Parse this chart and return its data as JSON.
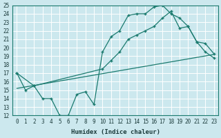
{
  "xlabel": "Humidex (Indice chaleur)",
  "bg_color": "#cce8ee",
  "grid_color": "#ffffff",
  "line_color": "#1a7a6e",
  "xlim_min": -0.5,
  "xlim_max": 23.5,
  "ylim_min": 12,
  "ylim_max": 25,
  "xticks": [
    0,
    1,
    2,
    3,
    4,
    5,
    6,
    7,
    8,
    9,
    10,
    11,
    12,
    13,
    14,
    15,
    16,
    17,
    18,
    19,
    20,
    21,
    22,
    23
  ],
  "yticks": [
    12,
    13,
    14,
    15,
    16,
    17,
    18,
    19,
    20,
    21,
    22,
    23,
    24,
    25
  ],
  "line1_x": [
    0,
    1,
    2,
    3,
    4,
    5,
    6,
    7,
    8,
    9,
    10,
    11,
    12,
    13,
    14,
    15,
    16,
    17,
    18,
    19,
    20,
    21,
    22,
    23
  ],
  "line1_y": [
    17,
    15,
    15.5,
    14,
    14,
    12,
    12,
    14.5,
    14.8,
    13.3,
    19.5,
    21.3,
    22.0,
    23.8,
    24.0,
    24.0,
    24.8,
    25.0,
    24.0,
    23.5,
    22.5,
    20.7,
    19.5,
    18.8
  ],
  "line2_x": [
    0,
    2,
    10,
    11,
    12,
    13,
    14,
    15,
    16,
    17,
    18,
    19,
    20,
    21,
    22,
    23
  ],
  "line2_y": [
    17,
    15.5,
    17.5,
    18.5,
    19.5,
    21.0,
    21.5,
    22.0,
    22.5,
    23.5,
    24.3,
    22.3,
    22.5,
    20.7,
    20.5,
    19.3
  ],
  "line3_x": [
    0,
    23
  ],
  "line3_y": [
    15.2,
    19.2
  ]
}
